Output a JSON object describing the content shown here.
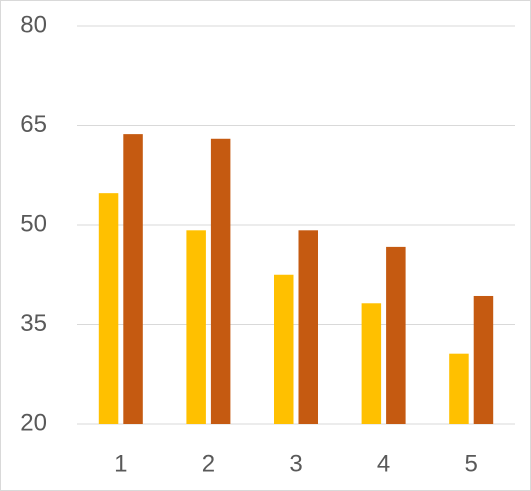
{
  "chart_data": {
    "type": "bar",
    "categories": [
      "1",
      "2",
      "3",
      "4",
      "5"
    ],
    "series": [
      {
        "color": "#ffc000",
        "values": [
          54.8,
          49.2,
          42.5,
          38.2,
          30.6
        ]
      },
      {
        "color": "#c55a11",
        "values": [
          63.7,
          63,
          49.2,
          46.7,
          39.3
        ]
      }
    ],
    "ylim": [
      20,
      80
    ],
    "yticks": [
      20,
      35,
      50,
      65,
      80
    ],
    "grid": true
  }
}
